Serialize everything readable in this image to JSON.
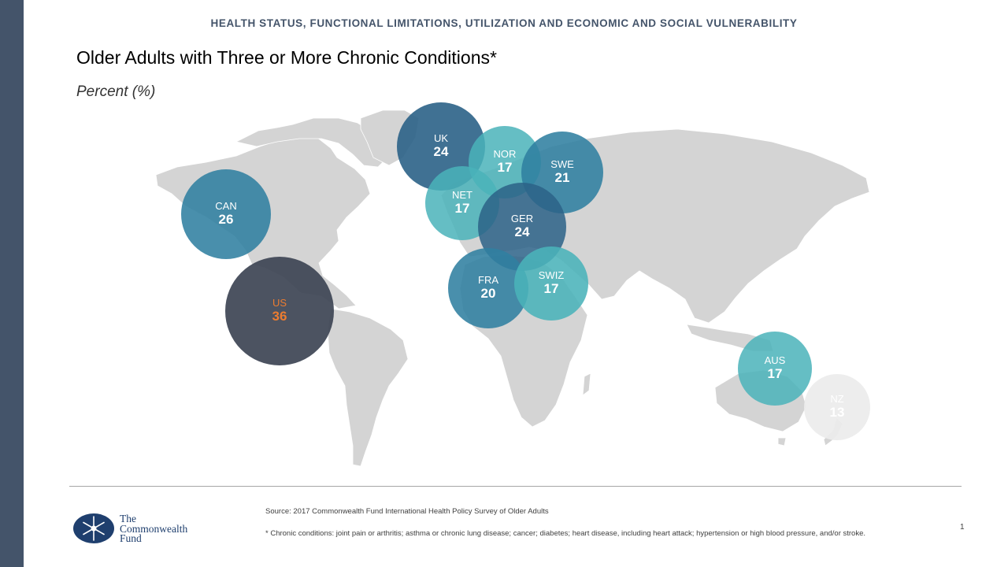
{
  "header": {
    "section": "HEALTH STATUS, FUNCTIONAL LIMITATIONS, UTILIZATION AND ECONOMIC AND SOCIAL VULNERABILITY",
    "title": "Older Adults with Three or More Chronic Conditions*",
    "subtitle": "Percent (%)"
  },
  "chart_data": {
    "type": "bubble-map",
    "title": "Older Adults with Three or More Chronic Conditions*",
    "unit": "Percent (%)",
    "points": [
      {
        "label": "CAN",
        "value": 26
      },
      {
        "label": "US",
        "value": 36
      },
      {
        "label": "UK",
        "value": 24
      },
      {
        "label": "NOR",
        "value": 17
      },
      {
        "label": "SWE",
        "value": 21
      },
      {
        "label": "NET",
        "value": 17
      },
      {
        "label": "GER",
        "value": 24
      },
      {
        "label": "FRA",
        "value": 20
      },
      {
        "label": "SWIZ",
        "value": 17
      },
      {
        "label": "AUS",
        "value": 17
      },
      {
        "label": "NZ",
        "value": 13
      }
    ]
  },
  "colors": {
    "sidebar": "#44546a",
    "land": "#d4d4d4",
    "dark_blue": "#2b6287",
    "mid_blue": "#307fa1",
    "teal": "#4ab3ba",
    "us_circle": "#3d4454",
    "us_label": "#ec7c30",
    "nz_circle": "#ececec"
  },
  "footer": {
    "source": "Source: 2017 Commonwealth Fund International Health Policy Survey of Older Adults",
    "footnote": "* Chronic conditions: joint pain or arthritis; asthma or chronic lung disease; cancer; diabetes; heart disease, including heart attack; hypertension or high blood pressure, and/or stroke.",
    "page": "1"
  },
  "logo": {
    "line1": "The",
    "line2": "Commonwealth",
    "line3": "Fund"
  }
}
